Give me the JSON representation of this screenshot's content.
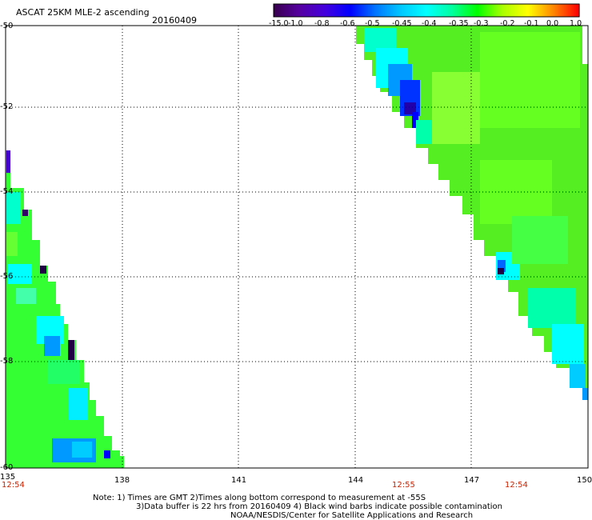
{
  "title": "ASCAT 25KM MLE-2 ascending",
  "date": "20160409",
  "colorbar": {
    "labels": [
      "-15.0",
      "-1.0",
      "-0.8",
      "-0.6",
      "-0.5",
      "-0.45",
      "-0.4",
      "-0.35",
      "-0.3",
      "-0.2",
      "-0.1",
      "0.0",
      "1.0"
    ],
    "colors": [
      "#3a0050",
      "#5500a0",
      "#4400dd",
      "#0000ff",
      "#0077ff",
      "#00c8ff",
      "#00ffff",
      "#00ffa0",
      "#00ff00",
      "#aaff00",
      "#ffff00",
      "#ff8800",
      "#ff0000"
    ]
  },
  "lat_labels": [
    "-50",
    "-52",
    "-54",
    "-56",
    "-58",
    "-60"
  ],
  "lon_labels": [
    "135",
    "138",
    "141",
    "144",
    "147",
    "150"
  ],
  "time_labels": [
    "12:54",
    "12:55",
    "12:54"
  ],
  "notes": [
    "Note: 1) Times are GMT 2)Times along bottom correspond to measurement at -55S",
    "3)Data buffer is 22 hrs from 20160409 4) Black wind barbs indicate possible contamination",
    "NOAA/NESDIS/Center for Satellite Applications and Research"
  ],
  "swaths": [
    {
      "name": "left-swath",
      "dominant_color": "#33ff33"
    },
    {
      "name": "right-swath",
      "dominant_color": "#55ee22"
    }
  ]
}
